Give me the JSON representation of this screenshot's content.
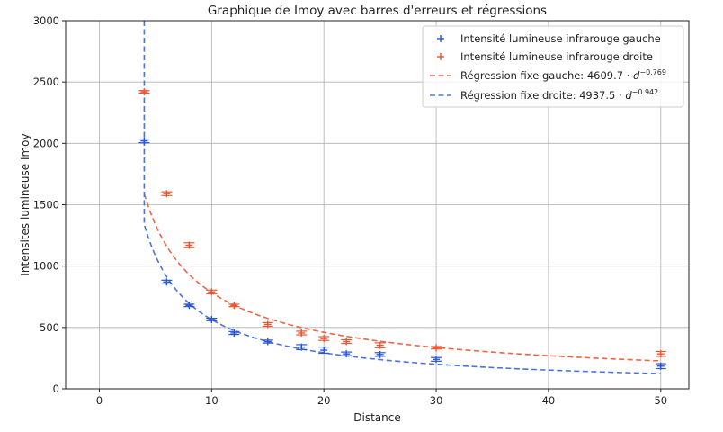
{
  "chart_data": {
    "type": "scatter",
    "title": "Graphique de Imoy avec barres d'erreurs et régressions",
    "xlabel": "Distance",
    "ylabel": "Intensites lumineuse Imoy",
    "xlim": [
      -3,
      52.5
    ],
    "ylim": [
      0,
      3000
    ],
    "xticks": [
      0,
      10,
      20,
      30,
      40,
      50
    ],
    "yticks": [
      0,
      500,
      1000,
      1500,
      2000,
      2500,
      3000
    ],
    "grid": true,
    "legend_position": "top-right",
    "colors": {
      "left": "#2a55d4",
      "right": "#ee5533",
      "left_fit": "#4a75e0",
      "right_fit": "#ee6644"
    },
    "series": [
      {
        "name": "Intensité lumineuse infrarouge gauche",
        "marker": "+",
        "x": [
          4,
          6,
          8,
          10,
          12,
          15,
          18,
          20,
          22,
          25,
          30,
          50
        ],
        "y": [
          2020,
          870,
          680,
          565,
          455,
          385,
          340,
          315,
          285,
          280,
          240,
          185
        ],
        "err": [
          15,
          15,
          10,
          10,
          12,
          12,
          20,
          25,
          15,
          15,
          15,
          20
        ]
      },
      {
        "name": "Intensité lumineuse infrarouge droite",
        "marker": "+",
        "x": [
          4,
          6,
          8,
          10,
          12,
          15,
          18,
          20,
          22,
          25,
          30,
          50
        ],
        "y": [
          2420,
          1590,
          1170,
          790,
          680,
          525,
          455,
          410,
          385,
          355,
          335,
          285
        ],
        "err": [
          10,
          15,
          20,
          15,
          10,
          15,
          15,
          15,
          15,
          20,
          10,
          20
        ]
      }
    ],
    "fits": [
      {
        "name": "Régression fixe gauche: 4609.7 · d^−0.769",
        "label_main": "Régression fixe gauche: 4609.7 · ",
        "label_var": "d",
        "label_exp": "−0.769",
        "coef": 4609.7,
        "exponent": -0.769,
        "x_range": [
          4,
          50
        ]
      },
      {
        "name": "Régression fixe droite: 4937.5 · d^−0.942",
        "label_main": "Régression fixe droite: 4937.5 · ",
        "label_var": "d",
        "label_exp": "−0.942",
        "coef": 4937.5,
        "exponent": -0.942,
        "x_range": [
          4,
          50
        ]
      }
    ]
  }
}
